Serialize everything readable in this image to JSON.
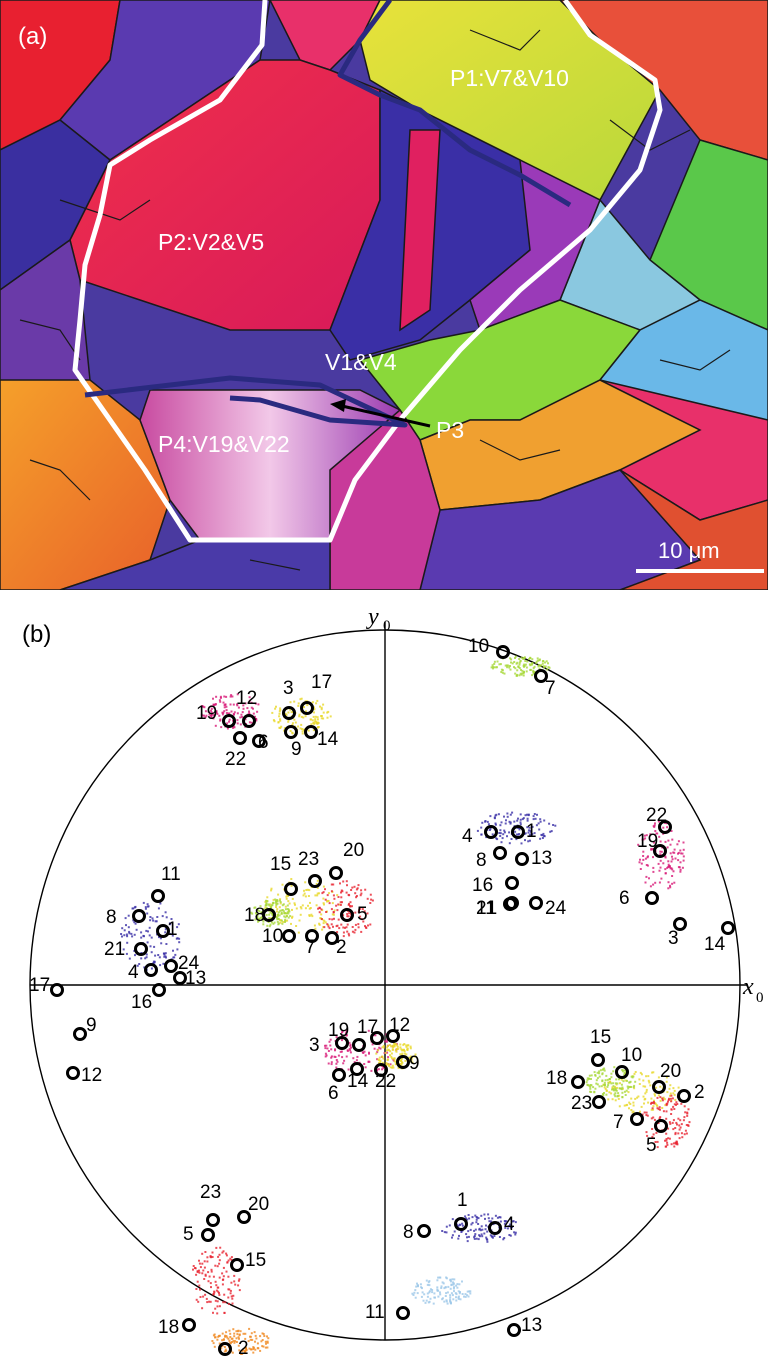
{
  "panel_a": {
    "label": "(a)",
    "regions": {
      "p1": "P1:V7&V10",
      "p2": "P2:V2&V5",
      "v1v4": "V1&V4",
      "p3": "P3",
      "p4": "P4:V19&V22"
    },
    "scale_bar": "10 μm"
  },
  "panel_b": {
    "label": "(b)",
    "axes": {
      "y": "y",
      "y_sub": "0",
      "x": "x",
      "x_sub": "0"
    },
    "pole_colors": {
      "blue": "#3a2fa6",
      "purple": "#8a3aa8",
      "magenta": "#d81a78",
      "red": "#e8232f",
      "orange": "#f08a22",
      "yellow": "#e8d82a",
      "lime": "#a8d83a",
      "cyan": "#9ec8e8"
    },
    "pole_labels": [
      "1",
      "2",
      "3",
      "4",
      "5",
      "6",
      "7",
      "8",
      "9",
      "10",
      "11",
      "12",
      "13",
      "14",
      "15",
      "16",
      "17",
      "18",
      "19",
      "20",
      "21",
      "22",
      "23",
      "24"
    ]
  }
}
